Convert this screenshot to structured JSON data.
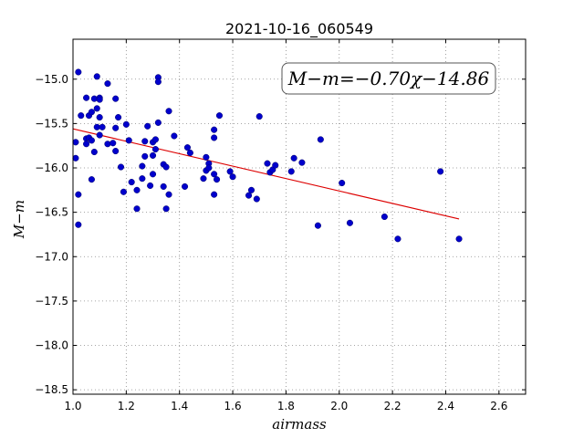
{
  "chart_data": {
    "type": "scatter",
    "title": "2021-10-16_060549",
    "xlabel": "airmass",
    "ylabel": "M−m",
    "xlim": [
      1.0,
      2.7
    ],
    "ylim": [
      -18.55,
      -14.55
    ],
    "y_inverted": false,
    "grid": true,
    "grid_style": "dotted",
    "x_ticks": [
      1.0,
      1.2,
      1.4,
      1.6,
      1.8,
      2.0,
      2.2,
      2.4,
      2.6
    ],
    "x_tick_labels": [
      "1.0",
      "1.2",
      "1.4",
      "1.6",
      "1.8",
      "2.0",
      "2.2",
      "2.4",
      "2.6"
    ],
    "y_ticks": [
      -15.0,
      -15.5,
      -16.0,
      -16.5,
      -17.0,
      -17.5,
      -18.0,
      -18.5
    ],
    "y_tick_labels": [
      "−15.0",
      "−15.5",
      "−16.0",
      "−16.5",
      "−17.0",
      "−17.5",
      "−18.0",
      "−18.5"
    ],
    "annotation": "M−m=−0.70χ−14.86",
    "annotation_placement": "top-right",
    "colors": {
      "points": "#0000cc",
      "fit_line": "#dd0000",
      "grid": "#888888"
    },
    "fit": {
      "slope": -0.7,
      "intercept": -14.86,
      "x_range": [
        1.0,
        2.45
      ]
    },
    "points": [
      [
        1.02,
        -14.92
      ],
      [
        1.03,
        -15.41
      ],
      [
        1.01,
        -15.71
      ],
      [
        1.01,
        -15.89
      ],
      [
        1.02,
        -16.3
      ],
      [
        1.02,
        -16.64
      ],
      [
        1.05,
        -15.21
      ],
      [
        1.05,
        -15.67
      ],
      [
        1.05,
        -15.73
      ],
      [
        1.06,
        -15.41
      ],
      [
        1.06,
        -15.66
      ],
      [
        1.07,
        -15.37
      ],
      [
        1.07,
        -15.69
      ],
      [
        1.08,
        -15.82
      ],
      [
        1.07,
        -16.13
      ],
      [
        1.08,
        -15.22
      ],
      [
        1.09,
        -14.97
      ],
      [
        1.09,
        -15.33
      ],
      [
        1.1,
        -15.21
      ],
      [
        1.1,
        -15.23
      ],
      [
        1.1,
        -15.43
      ],
      [
        1.09,
        -15.54
      ],
      [
        1.1,
        -15.63
      ],
      [
        1.11,
        -15.54
      ],
      [
        1.13,
        -15.73
      ],
      [
        1.13,
        -15.05
      ],
      [
        1.15,
        -15.72
      ],
      [
        1.16,
        -15.55
      ],
      [
        1.16,
        -15.81
      ],
      [
        1.16,
        -15.22
      ],
      [
        1.17,
        -15.43
      ],
      [
        1.18,
        -15.99
      ],
      [
        1.19,
        -16.27
      ],
      [
        1.2,
        -15.51
      ],
      [
        1.21,
        -15.69
      ],
      [
        1.22,
        -16.16
      ],
      [
        1.24,
        -16.25
      ],
      [
        1.24,
        -16.46
      ],
      [
        1.26,
        -15.98
      ],
      [
        1.26,
        -16.12
      ],
      [
        1.27,
        -15.7
      ],
      [
        1.27,
        -15.87
      ],
      [
        1.28,
        -15.53
      ],
      [
        1.29,
        -16.2
      ],
      [
        1.3,
        -15.71
      ],
      [
        1.3,
        -15.86
      ],
      [
        1.31,
        -15.68
      ],
      [
        1.3,
        -16.07
      ],
      [
        1.31,
        -15.79
      ],
      [
        1.32,
        -14.98
      ],
      [
        1.32,
        -15.03
      ],
      [
        1.32,
        -15.49
      ],
      [
        1.34,
        -15.96
      ],
      [
        1.34,
        -16.21
      ],
      [
        1.35,
        -15.99
      ],
      [
        1.35,
        -16.46
      ],
      [
        1.36,
        -16.3
      ],
      [
        1.36,
        -15.36
      ],
      [
        1.38,
        -15.64
      ],
      [
        1.42,
        -16.21
      ],
      [
        1.43,
        -15.77
      ],
      [
        1.44,
        -15.83
      ],
      [
        1.49,
        -16.12
      ],
      [
        1.5,
        -16.03
      ],
      [
        1.5,
        -15.88
      ],
      [
        1.51,
        -15.95
      ],
      [
        1.51,
        -16.0
      ],
      [
        1.53,
        -16.3
      ],
      [
        1.53,
        -16.07
      ],
      [
        1.53,
        -15.57
      ],
      [
        1.53,
        -15.66
      ],
      [
        1.54,
        -16.13
      ],
      [
        1.55,
        -15.41
      ],
      [
        1.59,
        -16.04
      ],
      [
        1.6,
        -16.1
      ],
      [
        1.66,
        -16.31
      ],
      [
        1.67,
        -16.25
      ],
      [
        1.69,
        -16.35
      ],
      [
        1.7,
        -15.42
      ],
      [
        1.73,
        -15.95
      ],
      [
        1.74,
        -16.05
      ],
      [
        1.75,
        -16.02
      ],
      [
        1.76,
        -15.97
      ],
      [
        1.82,
        -16.04
      ],
      [
        1.83,
        -15.89
      ],
      [
        1.86,
        -15.94
      ],
      [
        1.92,
        -16.65
      ],
      [
        1.93,
        -15.68
      ],
      [
        2.01,
        -16.17
      ],
      [
        2.04,
        -16.62
      ],
      [
        2.17,
        -16.55
      ],
      [
        2.22,
        -16.8
      ],
      [
        2.38,
        -16.04
      ],
      [
        2.45,
        -16.8
      ]
    ]
  }
}
